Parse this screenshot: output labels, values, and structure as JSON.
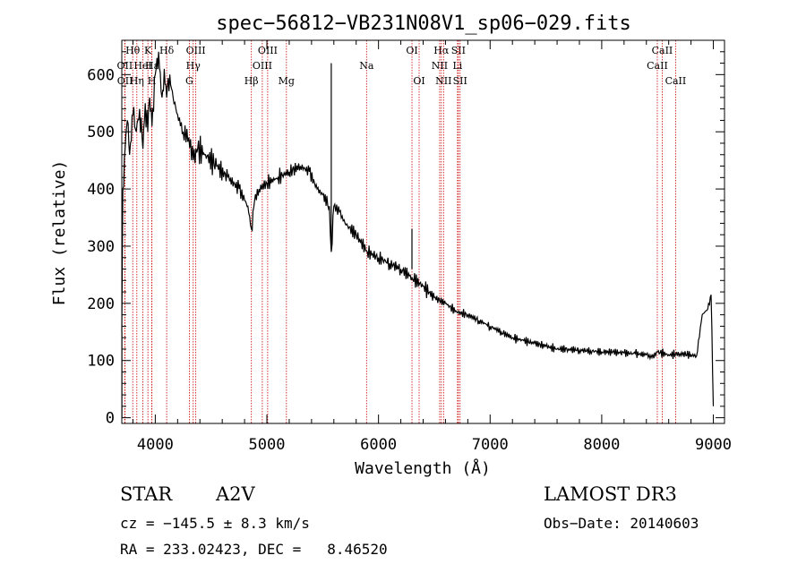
{
  "chart_data": {
    "type": "line",
    "title": "spec−56812−VB231N08V1_sp06−029.fits",
    "xlabel": "Wavelength (Å)",
    "ylabel": "Flux (relative)",
    "xlim": [
      3700,
      9100
    ],
    "ylim": [
      -10,
      660
    ],
    "x_ticks": [
      4000,
      5000,
      6000,
      7000,
      8000,
      9000
    ],
    "y_ticks": [
      0,
      100,
      200,
      300,
      400,
      500,
      600
    ],
    "grid": false,
    "series": [
      {
        "name": "flux",
        "x": [
          3700,
          3710,
          3730,
          3750,
          3770,
          3800,
          3830,
          3860,
          3889,
          3910,
          3933,
          3950,
          3970,
          4000,
          4030,
          4060,
          4080,
          4102,
          4130,
          4160,
          4200,
          4250,
          4300,
          4340,
          4380,
          4450,
          4550,
          4650,
          4750,
          4800,
          4830,
          4861,
          4890,
          4930,
          5000,
          5100,
          5200,
          5300,
          5380,
          5450,
          5500,
          5560,
          5577,
          5600,
          5650,
          5700,
          5800,
          5900,
          6000,
          6100,
          6200,
          6300,
          6400,
          6500,
          6600,
          6700,
          6800,
          6900,
          7000,
          7100,
          7200,
          7300,
          7400,
          7500,
          7600,
          7700,
          7800,
          7900,
          8000,
          8100,
          8200,
          8300,
          8400,
          8450,
          8500,
          8600,
          8700,
          8800,
          8850,
          8900,
          8950,
          8980,
          9000
        ],
        "y": [
          150,
          400,
          470,
          520,
          460,
          530,
          500,
          540,
          470,
          550,
          500,
          560,
          510,
          600,
          640,
          560,
          610,
          560,
          600,
          560,
          530,
          500,
          490,
          450,
          470,
          460,
          440,
          420,
          400,
          380,
          370,
          330,
          380,
          400,
          410,
          420,
          430,
          440,
          430,
          400,
          390,
          370,
          290,
          370,
          360,
          340,
          320,
          290,
          280,
          270,
          260,
          245,
          230,
          210,
          200,
          185,
          180,
          170,
          160,
          150,
          140,
          135,
          130,
          125,
          120,
          120,
          118,
          117,
          115,
          115,
          113,
          112,
          110,
          105,
          115,
          110,
          112,
          110,
          108,
          180,
          190,
          215,
          20
        ]
      }
    ],
    "line_identifications": [
      {
        "label": "Hθ",
        "wavelength": 3798,
        "row": 1
      },
      {
        "label": "OII",
        "wavelength": 3727,
        "row": 2
      },
      {
        "label": "OII",
        "wavelength": 3729,
        "row": 3
      },
      {
        "label": "K",
        "wavelength": 3934,
        "row": 1
      },
      {
        "label": "HeI",
        "wavelength": 3889,
        "row": 2
      },
      {
        "label": "Hη",
        "wavelength": 3835,
        "row": 3
      },
      {
        "label": "H",
        "wavelength": 3969,
        "row": 3
      },
      {
        "label": "Hδ",
        "wavelength": 4102,
        "row": 1
      },
      {
        "label": "Hε",
        "wavelength": 3970,
        "row": 2
      },
      {
        "label": "OIII",
        "wavelength": 4363,
        "row": 1
      },
      {
        "label": "Hγ",
        "wavelength": 4340,
        "row": 2
      },
      {
        "label": "G",
        "wavelength": 4305,
        "row": 3
      },
      {
        "label": "OIII",
        "wavelength": 5007,
        "row": 1
      },
      {
        "label": "OIII",
        "wavelength": 4959,
        "row": 2
      },
      {
        "label": "Hβ",
        "wavelength": 4861,
        "row": 3
      },
      {
        "label": "Mg",
        "wavelength": 5175,
        "row": 3
      },
      {
        "label": "Na",
        "wavelength": 5893,
        "row": 2
      },
      {
        "label": "OI",
        "wavelength": 6300,
        "row": 1
      },
      {
        "label": "OI",
        "wavelength": 6364,
        "row": 3
      },
      {
        "label": "Hα",
        "wavelength": 6563,
        "row": 1
      },
      {
        "label": "SII",
        "wavelength": 6716,
        "row": 1
      },
      {
        "label": "NII",
        "wavelength": 6548,
        "row": 2
      },
      {
        "label": "Li",
        "wavelength": 6708,
        "row": 2
      },
      {
        "label": "NII",
        "wavelength": 6583,
        "row": 3
      },
      {
        "label": "SII",
        "wavelength": 6731,
        "row": 3
      },
      {
        "label": "CaII",
        "wavelength": 8542,
        "row": 1
      },
      {
        "label": "CaII",
        "wavelength": 8498,
        "row": 2
      },
      {
        "label": "CaII",
        "wavelength": 8662,
        "row": 3
      }
    ],
    "line_color": "#000000",
    "marker_line_color": "#cc0000"
  },
  "info": {
    "class_label": "STAR",
    "subclass": "A2V",
    "survey": "LAMOST DR3",
    "cz": "cz = −145.5 ± 8.3 km/s",
    "obs_date": "Obs−Date: 20140603",
    "coords": "RA = 233.02423, DEC =   8.46520"
  }
}
